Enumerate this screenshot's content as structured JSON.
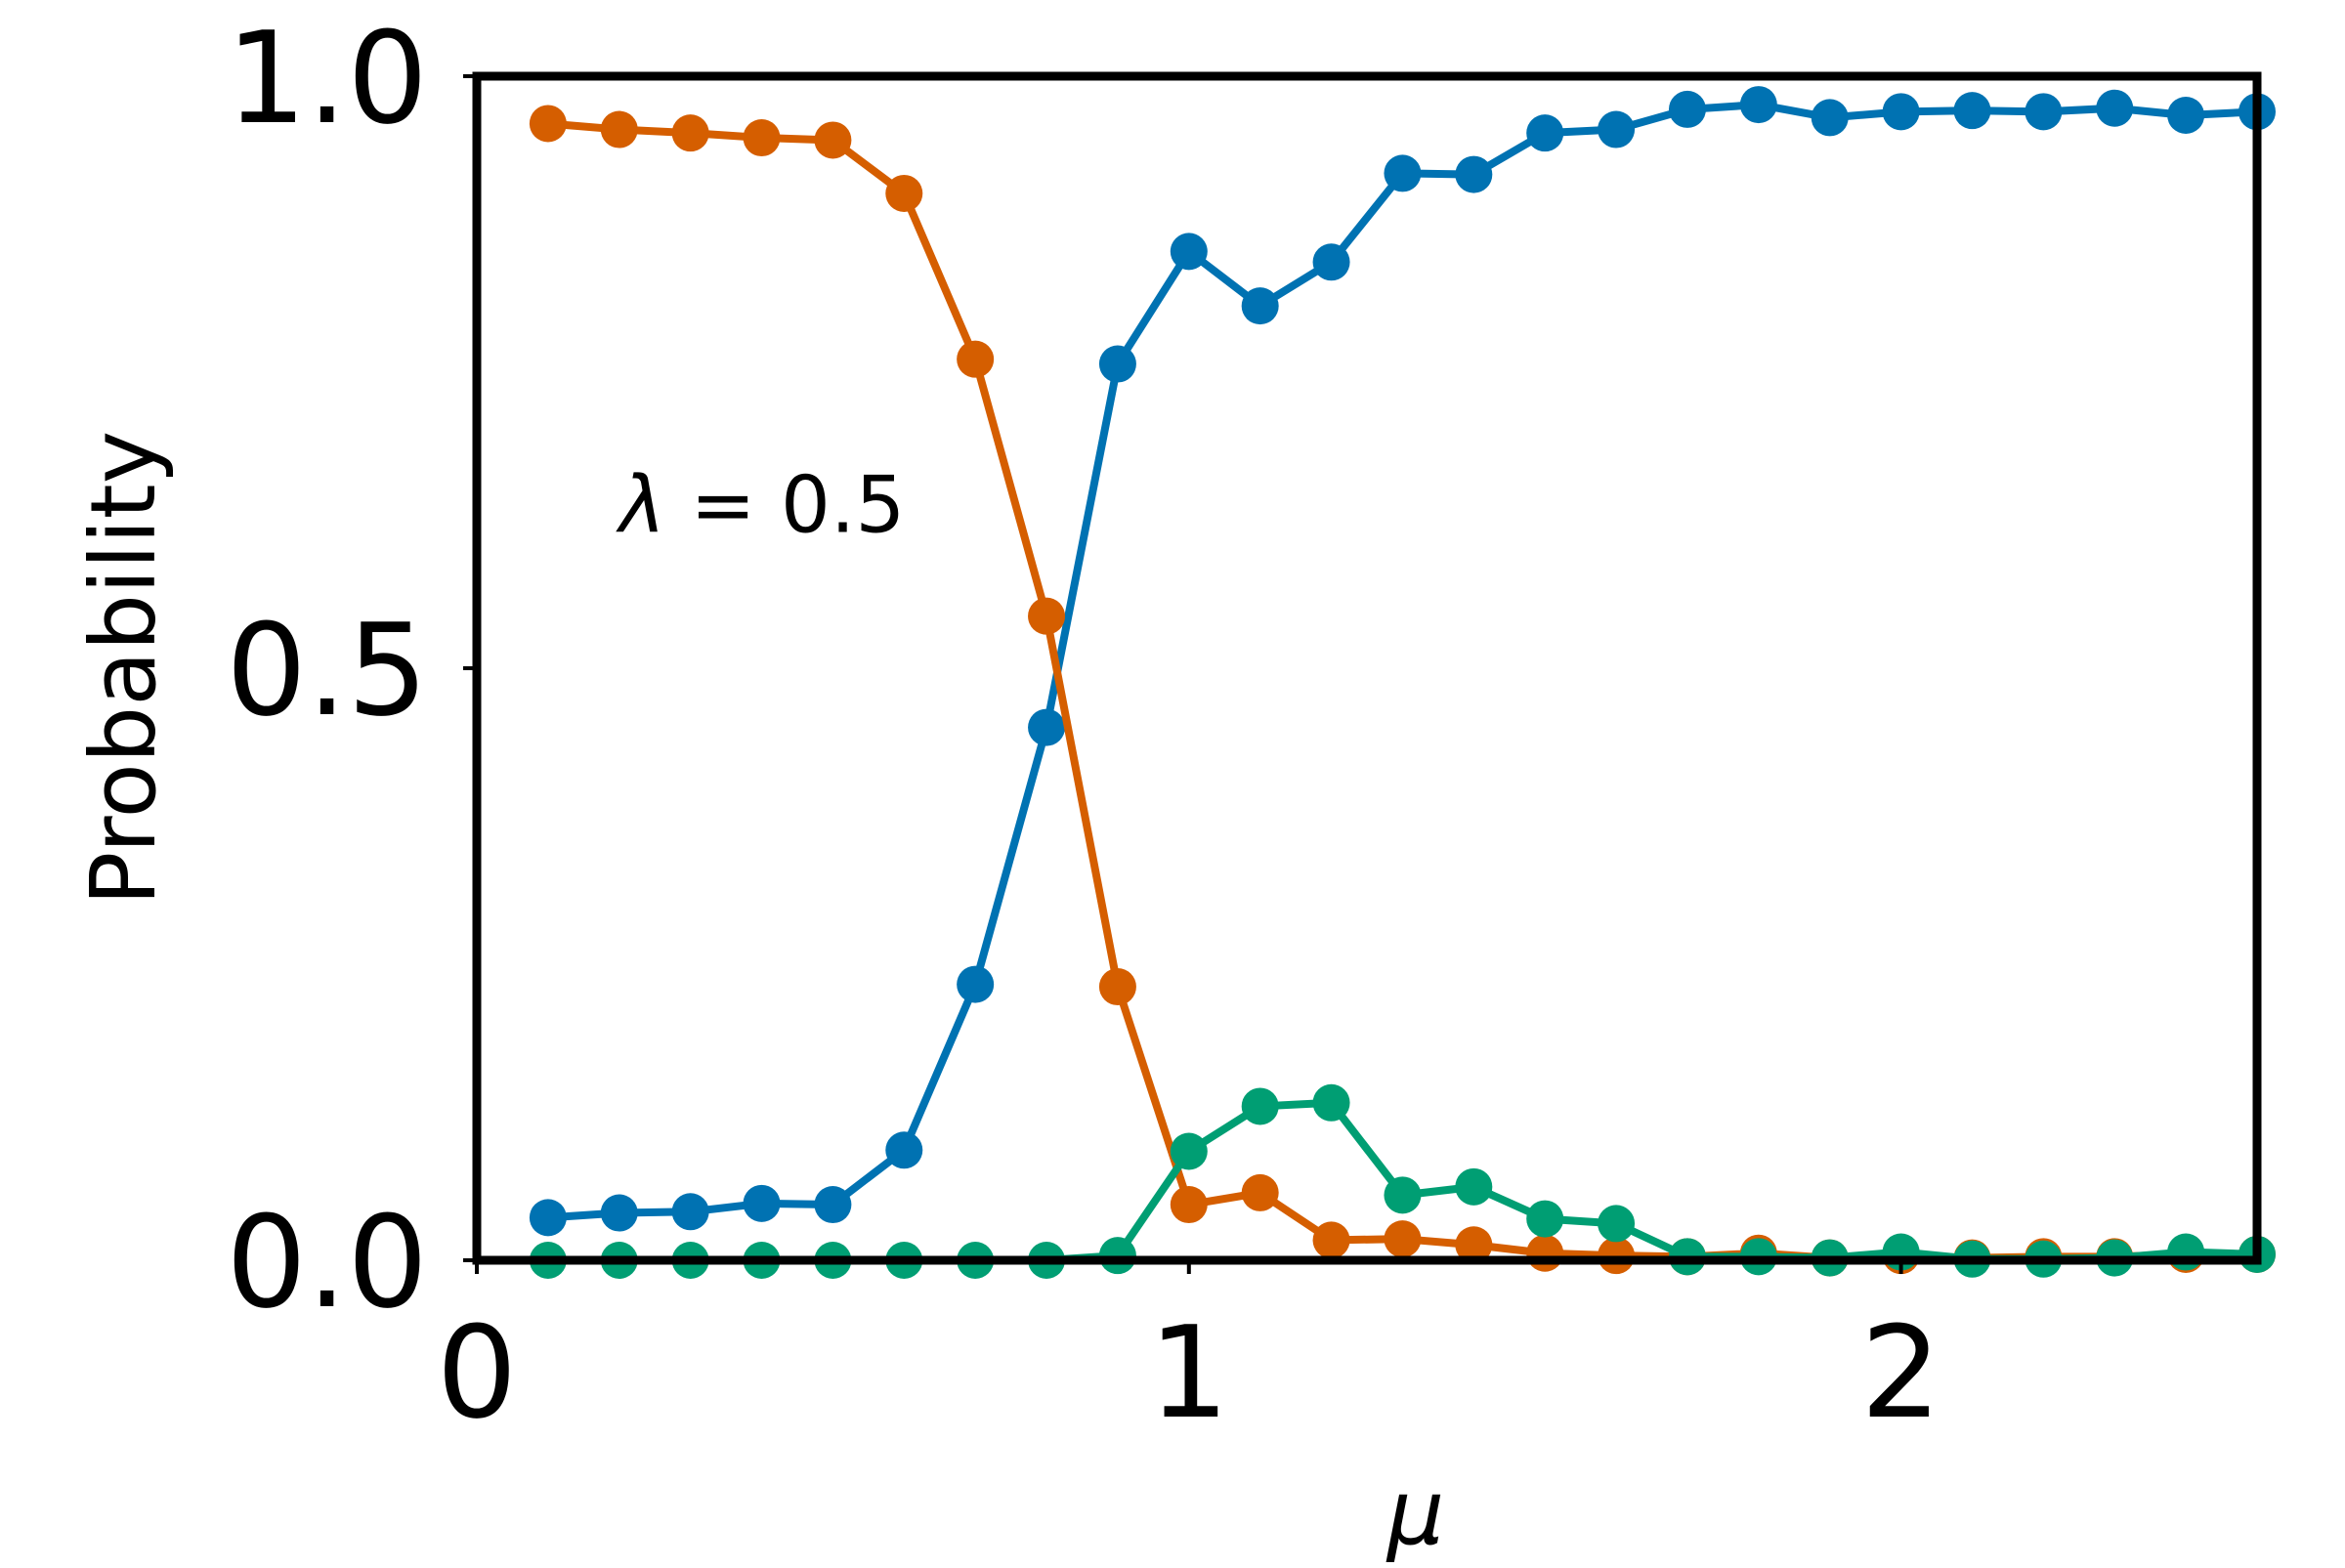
{
  "chart_data": {
    "type": "line",
    "title": "",
    "xlabel": "μ",
    "ylabel": "Probability",
    "xlim": [
      0,
      2.5
    ],
    "ylim": [
      0,
      1.0
    ],
    "xticks": [
      0,
      1,
      2
    ],
    "xtick_labels": [
      "0",
      "1",
      "2"
    ],
    "yticks": [
      0.0,
      0.5,
      1.0
    ],
    "ytick_labels": [
      "0.0",
      "0.5",
      "1.0"
    ],
    "grid": false,
    "legend": "none",
    "annotation": {
      "prefix": "λ",
      "text": " = 0.5",
      "x": 0.2,
      "y": 0.615
    },
    "x": [
      0.1,
      0.2,
      0.3,
      0.4,
      0.5,
      0.6,
      0.7,
      0.8,
      0.9,
      1.0,
      1.1,
      1.2,
      1.3,
      1.4,
      1.5,
      1.6,
      1.7,
      1.8,
      1.9,
      2.0,
      2.1,
      2.2,
      2.3,
      2.4,
      2.5
    ],
    "series": [
      {
        "color": "#0072B2",
        "values": [
          0.036,
          0.04,
          0.041,
          0.048,
          0.047,
          0.093,
          0.233,
          0.45,
          0.757,
          0.852,
          0.806,
          0.843,
          0.918,
          0.917,
          0.952,
          0.955,
          0.972,
          0.976,
          0.965,
          0.97,
          0.971,
          0.97,
          0.973,
          0.967,
          0.97
        ]
      },
      {
        "color": "#D55E00",
        "values": [
          0.96,
          0.955,
          0.952,
          0.948,
          0.946,
          0.901,
          0.761,
          0.544,
          0.231,
          0.047,
          0.057,
          0.017,
          0.018,
          0.013,
          0.006,
          0.004,
          0.003,
          0.006,
          0.002,
          0.004,
          0.002,
          0.003,
          0.003,
          0.005,
          0.005
        ]
      },
      {
        "color": "#009E73",
        "values": [
          0.0,
          0.0,
          0.0,
          0.0,
          0.0,
          0.0,
          0.0,
          0.0,
          0.004,
          0.092,
          0.13,
          0.133,
          0.055,
          0.062,
          0.035,
          0.031,
          0.003,
          0.003,
          0.002,
          0.007,
          0.001,
          0.001,
          0.002,
          0.007,
          0.005
        ]
      }
    ]
  }
}
